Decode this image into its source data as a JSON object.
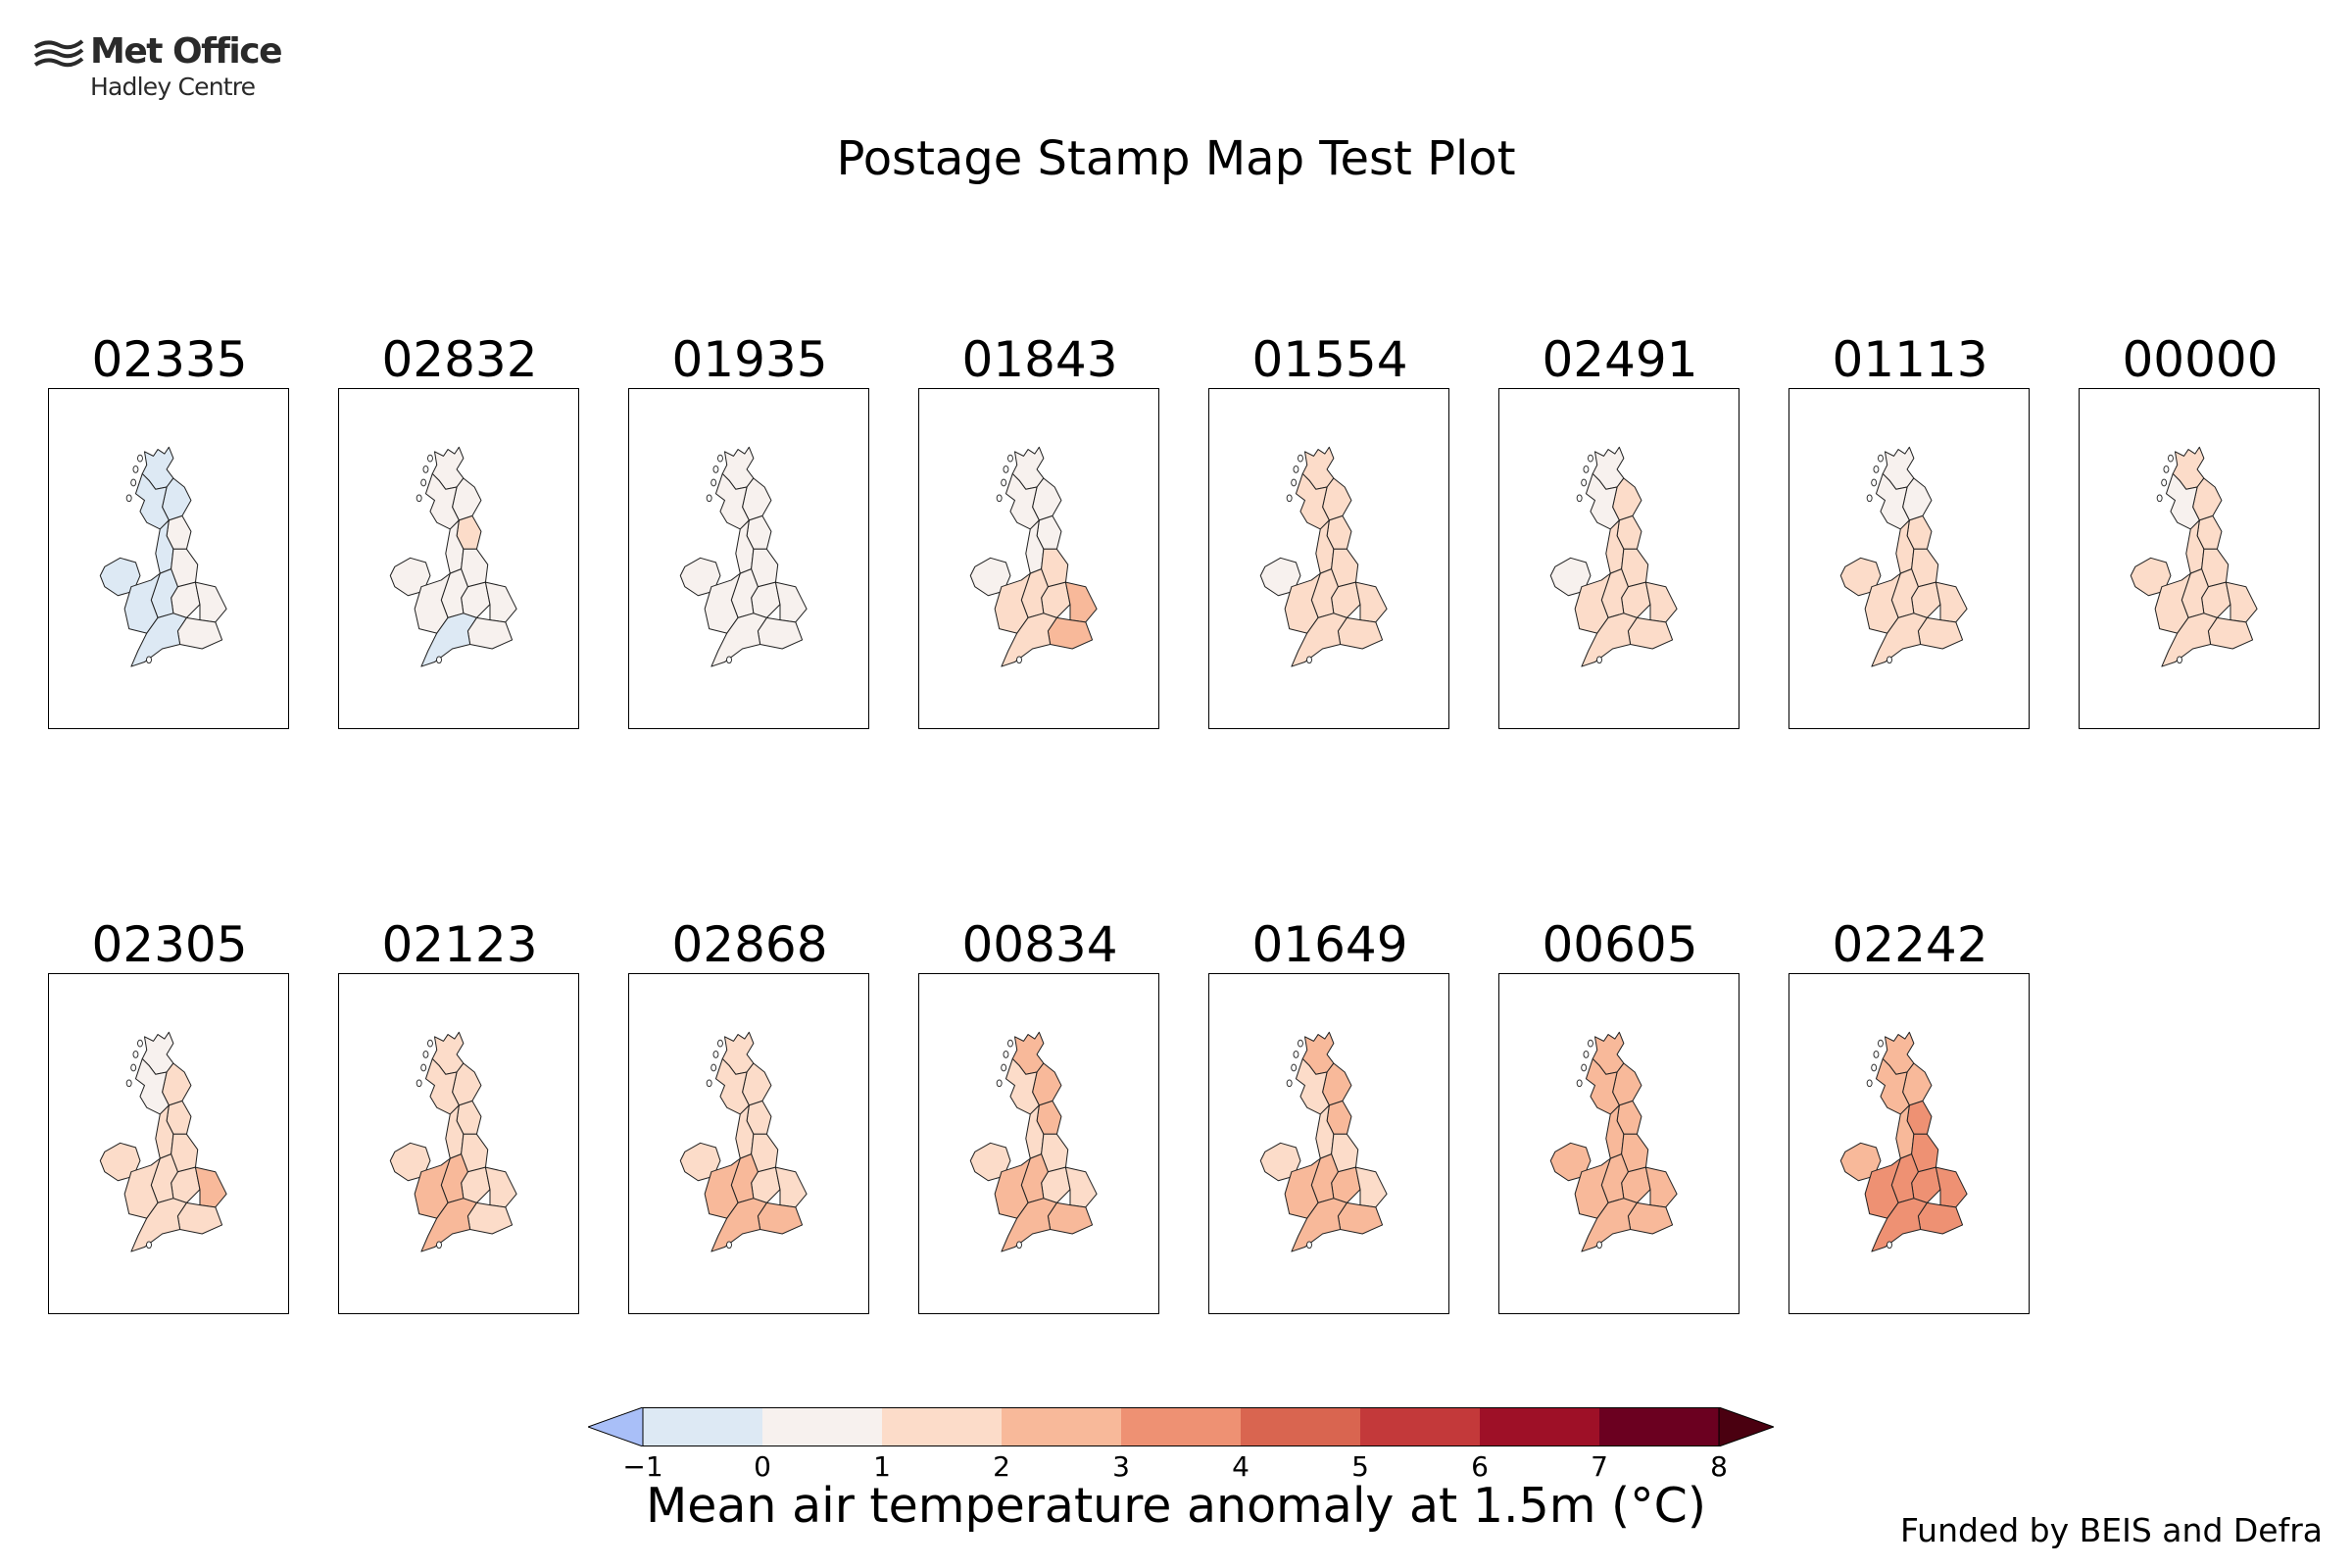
{
  "logo": {
    "brand": "Met Office",
    "sub": "Hadley Centre"
  },
  "title": "Postage Stamp Map Test Plot",
  "colorbar": {
    "label": "Mean air temperature anomaly at 1.5m (°C)",
    "ticks": [
      "−1",
      "0",
      "1",
      "2",
      "3",
      "4",
      "5",
      "6",
      "7",
      "8"
    ],
    "colors": [
      "#dde9f4",
      "#f7f1ee",
      "#fcdcc9",
      "#f8b99a",
      "#ee9173",
      "#d96550",
      "#c3393a",
      "#9e1027",
      "#6b0020"
    ],
    "under_color": "#a9bff8",
    "over_color": "#4a0010"
  },
  "funding": "Funded by BEIS and Defra",
  "chart_data": {
    "type": "map",
    "region_order": [
      "N Scotland",
      "E Scotland",
      "W Scotland",
      "Northern Ireland",
      "NE England",
      "NW England",
      "Yorkshire",
      "East Midlands",
      "West Midlands",
      "Wales",
      "East England",
      "SE England",
      "SW England"
    ],
    "members": [
      {
        "id": "02335",
        "anomaly": [
          -0.2,
          -0.4,
          -0.5,
          -0.5,
          0.2,
          -0.6,
          0.5,
          0.3,
          -0.4,
          -0.6,
          0.6,
          0.5,
          -0.3
        ]
      },
      {
        "id": "02832",
        "anomaly": [
          0.4,
          0.4,
          0.3,
          0.5,
          1.3,
          0.4,
          0.6,
          0.6,
          0.5,
          0.3,
          0.7,
          0.6,
          -0.3
        ]
      },
      {
        "id": "01935",
        "anomaly": [
          0.6,
          0.6,
          0.5,
          0.6,
          0.6,
          0.6,
          0.7,
          0.6,
          0.6,
          0.6,
          0.7,
          0.7,
          0.6
        ]
      },
      {
        "id": "01843",
        "anomaly": [
          0.5,
          0.6,
          0.4,
          0.7,
          0.8,
          0.6,
          1.4,
          1.5,
          1.5,
          1.4,
          2.3,
          2.4,
          1.6
        ]
      },
      {
        "id": "01554",
        "anomaly": [
          1.3,
          1.5,
          1.2,
          0.8,
          1.4,
          1.3,
          1.6,
          1.5,
          1.5,
          1.4,
          1.6,
          1.6,
          1.5
        ]
      },
      {
        "id": "02491",
        "anomaly": [
          0.8,
          1.2,
          0.6,
          0.5,
          1.3,
          1.2,
          1.3,
          1.3,
          1.4,
          1.3,
          1.5,
          1.5,
          1.4
        ]
      },
      {
        "id": "01113",
        "anomaly": [
          0.6,
          0.8,
          0.5,
          1.4,
          1.3,
          1.4,
          1.5,
          1.4,
          1.4,
          1.5,
          1.5,
          1.5,
          1.5
        ]
      },
      {
        "id": "00000",
        "anomaly": [
          1.2,
          1.4,
          0.9,
          1.5,
          1.4,
          1.4,
          1.5,
          1.5,
          1.5,
          1.5,
          1.5,
          1.5,
          1.5
        ]
      },
      {
        "id": "02305",
        "anomaly": [
          0.8,
          1.1,
          0.9,
          1.5,
          1.3,
          1.4,
          1.5,
          1.5,
          1.7,
          1.6,
          2.2,
          1.7,
          1.6
        ]
      },
      {
        "id": "02123",
        "anomaly": [
          1.4,
          1.6,
          1.3,
          1.5,
          1.5,
          1.5,
          1.6,
          1.6,
          2.5,
          2.6,
          1.6,
          1.7,
          2.6
        ]
      },
      {
        "id": "02868",
        "anomaly": [
          1.3,
          1.5,
          1.2,
          1.5,
          1.6,
          1.5,
          1.7,
          1.8,
          2.4,
          2.6,
          1.8,
          2.6,
          2.6
        ]
      },
      {
        "id": "00834",
        "anomaly": [
          2.4,
          2.6,
          1.8,
          1.6,
          2.5,
          1.6,
          1.7,
          1.7,
          2.3,
          2.4,
          1.6,
          2.6,
          2.3
        ]
      },
      {
        "id": "01649",
        "anomaly": [
          2.3,
          2.5,
          1.7,
          1.5,
          2.3,
          1.6,
          1.7,
          2.3,
          2.4,
          2.5,
          1.8,
          2.5,
          2.5
        ]
      },
      {
        "id": "00605",
        "anomaly": [
          2.3,
          2.5,
          2.1,
          2.4,
          2.5,
          2.4,
          2.4,
          2.5,
          2.5,
          2.5,
          2.5,
          2.6,
          2.5
        ]
      },
      {
        "id": "02242",
        "anomaly": [
          2.4,
          2.5,
          2.3,
          2.6,
          3.3,
          2.7,
          3.5,
          3.6,
          3.6,
          3.4,
          3.7,
          3.8,
          3.4
        ]
      }
    ]
  }
}
